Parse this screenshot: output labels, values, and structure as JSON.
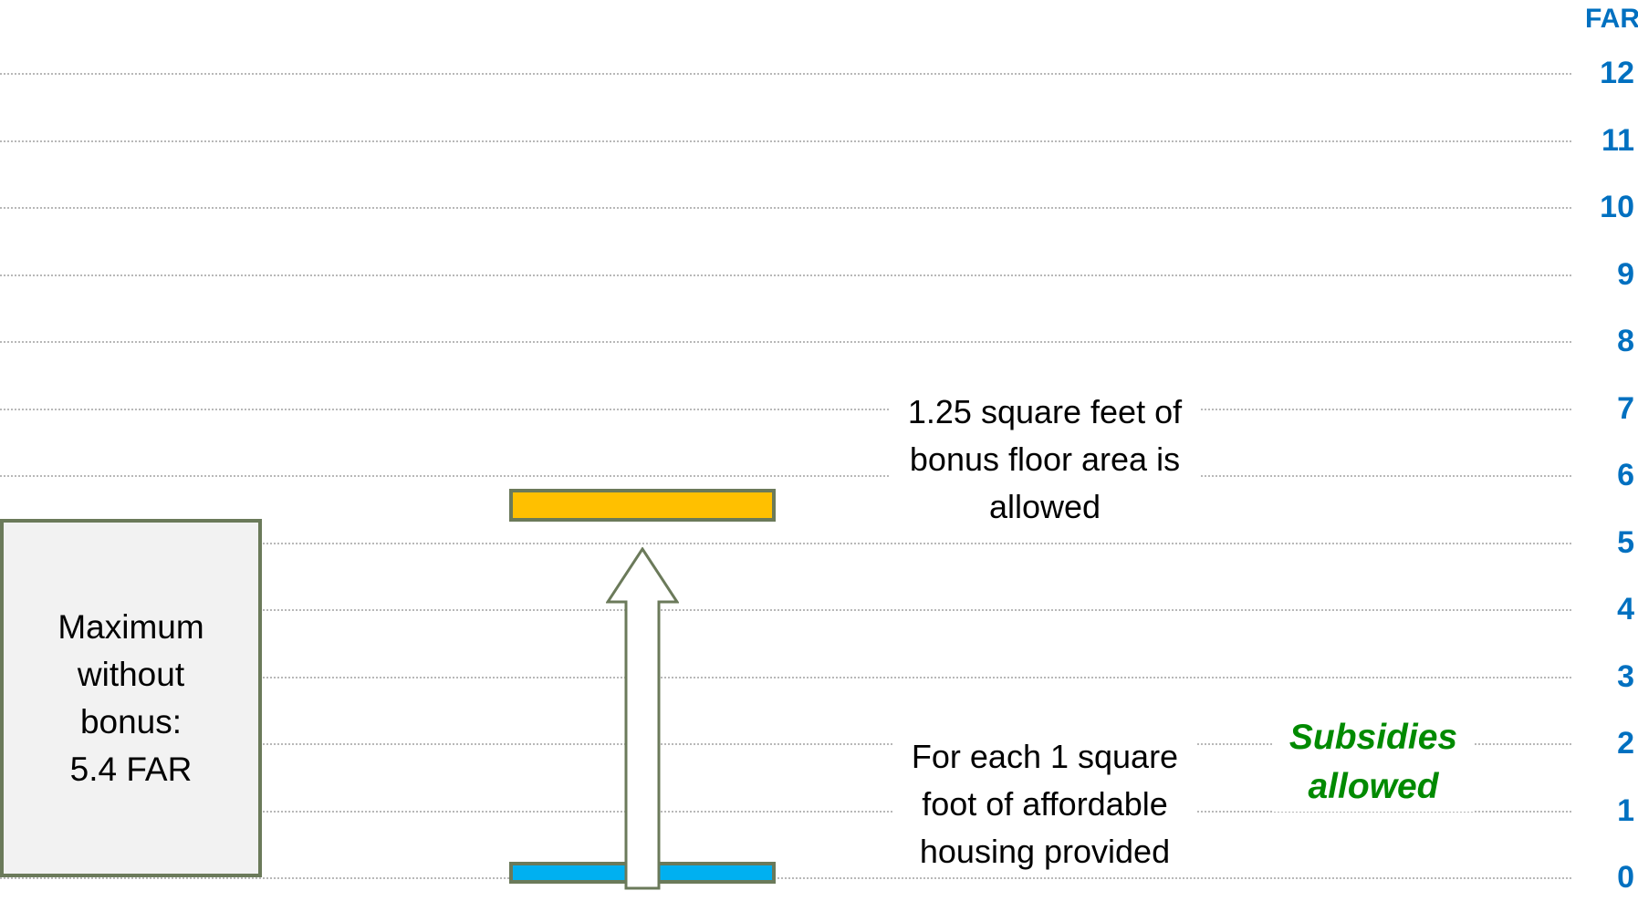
{
  "axis": {
    "unit_label": "FAR",
    "ticks": [
      "0",
      "1",
      "2",
      "3",
      "4",
      "5",
      "6",
      "7",
      "8",
      "9",
      "10",
      "11",
      "12"
    ]
  },
  "max_box": {
    "text": "Maximum\nwithout\nbonus:\n5.4 FAR"
  },
  "callouts": {
    "bonus": "1.25 square feet of\nbonus floor area is\nallowed",
    "affordable": "For each 1 square\nfoot of affordable\nhousing provided",
    "subsidies": "Subsidies\nallowed"
  },
  "colors": {
    "axis_text": "#0070c0",
    "bonus_bar": "#ffc000",
    "base_bar": "#00b0f0",
    "bar_border": "#6b7a5a",
    "subsidies_text": "#008a00",
    "gridline": "#b8b8b8"
  },
  "icons": {
    "arrow": "up-arrow-icon"
  }
}
